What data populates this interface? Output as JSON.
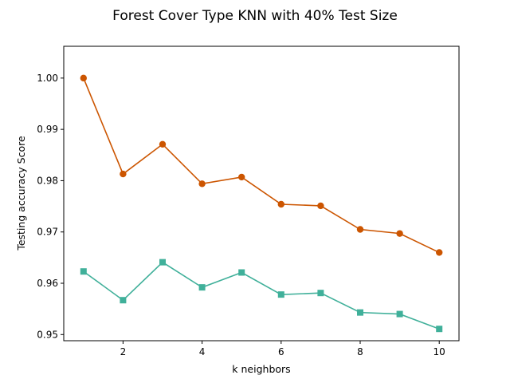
{
  "chart_data": {
    "type": "line",
    "title": "Forest Cover Type KNN with 40% Test Size",
    "xlabel": "k neighbors",
    "ylabel": "Testing accuracy Score",
    "xlim": [
      0.5,
      10.5
    ],
    "ylim": [
      0.9488,
      1.0062
    ],
    "xticks": [
      2,
      4,
      6,
      8,
      10
    ],
    "yticks": [
      0.95,
      0.96,
      0.97,
      0.98,
      0.99,
      1.0
    ],
    "ytick_labels": [
      "0.95",
      "0.96",
      "0.97",
      "0.98",
      "0.99",
      "1.00"
    ],
    "grid": false,
    "x": [
      1,
      2,
      3,
      4,
      5,
      6,
      7,
      8,
      9,
      10
    ],
    "series": [
      {
        "color": "#cc5500",
        "marker": "circle",
        "values": [
          1.0,
          0.9813,
          0.9871,
          0.9794,
          0.9807,
          0.9754,
          0.9751,
          0.9705,
          0.9697,
          0.966
        ]
      },
      {
        "color": "#40b09a",
        "marker": "square",
        "values": [
          0.9623,
          0.9567,
          0.9641,
          0.9592,
          0.9621,
          0.9578,
          0.9581,
          0.9543,
          0.954,
          0.9511
        ]
      }
    ]
  }
}
